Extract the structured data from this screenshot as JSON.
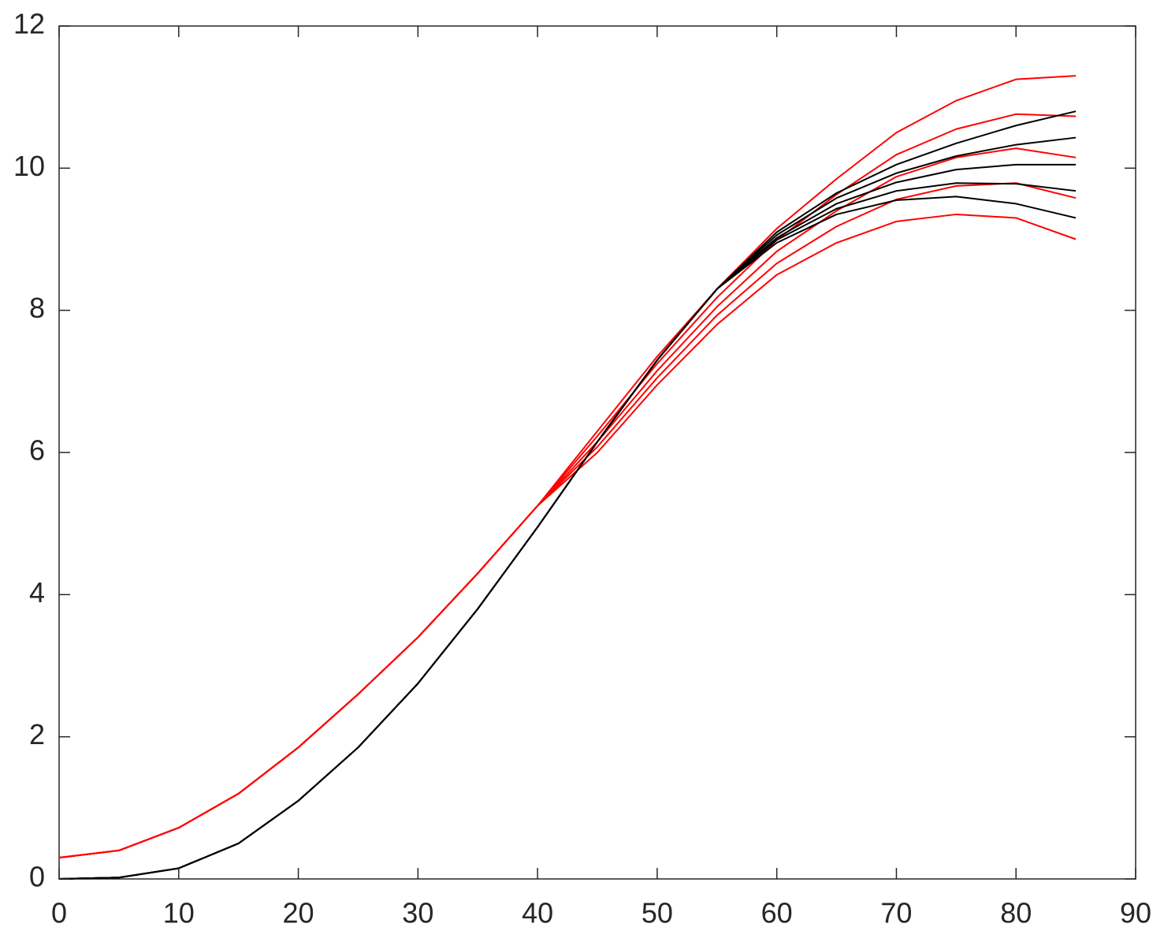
{
  "chart_data": {
    "type": "line",
    "x": [
      0,
      5,
      10,
      15,
      20,
      25,
      30,
      35,
      40,
      45,
      50,
      55,
      60,
      65,
      70,
      75,
      80,
      85
    ],
    "series": [
      {
        "color": "#ff0000",
        "values": [
          0.3,
          0.4,
          0.72,
          1.2,
          1.85,
          2.6,
          3.4,
          4.3,
          5.25,
          6.0,
          6.95,
          7.8,
          8.5,
          8.95,
          9.25,
          9.35,
          9.3,
          9.0
        ]
      },
      {
        "color": "#ff0000",
        "values": [
          0.3,
          0.4,
          0.72,
          1.2,
          1.85,
          2.6,
          3.4,
          4.3,
          5.25,
          6.08,
          7.05,
          7.93,
          8.66,
          9.18,
          9.56,
          9.75,
          9.79,
          9.58
        ]
      },
      {
        "color": "#ff0000",
        "values": [
          0.3,
          0.4,
          0.72,
          1.2,
          1.85,
          2.6,
          3.4,
          4.3,
          5.25,
          6.15,
          7.15,
          8.05,
          8.83,
          9.4,
          9.88,
          10.15,
          10.28,
          10.15
        ]
      },
      {
        "color": "#ff0000",
        "values": [
          0.3,
          0.4,
          0.72,
          1.2,
          1.85,
          2.6,
          3.4,
          4.3,
          5.25,
          6.23,
          7.25,
          8.18,
          8.99,
          9.63,
          10.19,
          10.55,
          10.76,
          10.73
        ]
      },
      {
        "color": "#ff0000",
        "values": [
          0.3,
          0.4,
          0.72,
          1.2,
          1.85,
          2.6,
          3.4,
          4.3,
          5.25,
          6.3,
          7.35,
          8.3,
          9.15,
          9.85,
          10.5,
          10.95,
          11.25,
          11.3
        ]
      },
      {
        "color": "#000000",
        "values": [
          0,
          0.02,
          0.15,
          0.5,
          1.1,
          1.85,
          2.75,
          3.8,
          4.95,
          6.15,
          7.3,
          8.3,
          8.95,
          9.35,
          9.55,
          9.6,
          9.5,
          9.3
        ]
      },
      {
        "color": "#000000",
        "values": [
          0,
          0.02,
          0.15,
          0.5,
          1.1,
          1.85,
          2.75,
          3.8,
          4.95,
          6.15,
          7.3,
          8.3,
          8.99,
          9.43,
          9.68,
          9.79,
          9.78,
          9.68
        ]
      },
      {
        "color": "#000000",
        "values": [
          0,
          0.02,
          0.15,
          0.5,
          1.1,
          1.85,
          2.75,
          3.8,
          4.95,
          6.15,
          7.3,
          8.3,
          9.02,
          9.5,
          9.8,
          9.98,
          10.05,
          10.05
        ]
      },
      {
        "color": "#000000",
        "values": [
          0,
          0.02,
          0.15,
          0.5,
          1.1,
          1.85,
          2.75,
          3.8,
          4.95,
          6.15,
          7.3,
          8.3,
          9.06,
          9.58,
          9.93,
          10.17,
          10.33,
          10.43
        ]
      },
      {
        "color": "#000000",
        "values": [
          0,
          0.02,
          0.15,
          0.5,
          1.1,
          1.85,
          2.75,
          3.8,
          4.95,
          6.15,
          7.3,
          8.3,
          9.1,
          9.65,
          10.05,
          10.35,
          10.6,
          10.8
        ]
      }
    ],
    "xlim": [
      0,
      90
    ],
    "xticks": [
      0,
      10,
      20,
      30,
      40,
      50,
      60,
      70,
      80,
      90
    ],
    "ylim": [
      0,
      12
    ],
    "yticks": [
      0,
      2,
      4,
      6,
      8,
      10,
      12
    ]
  }
}
